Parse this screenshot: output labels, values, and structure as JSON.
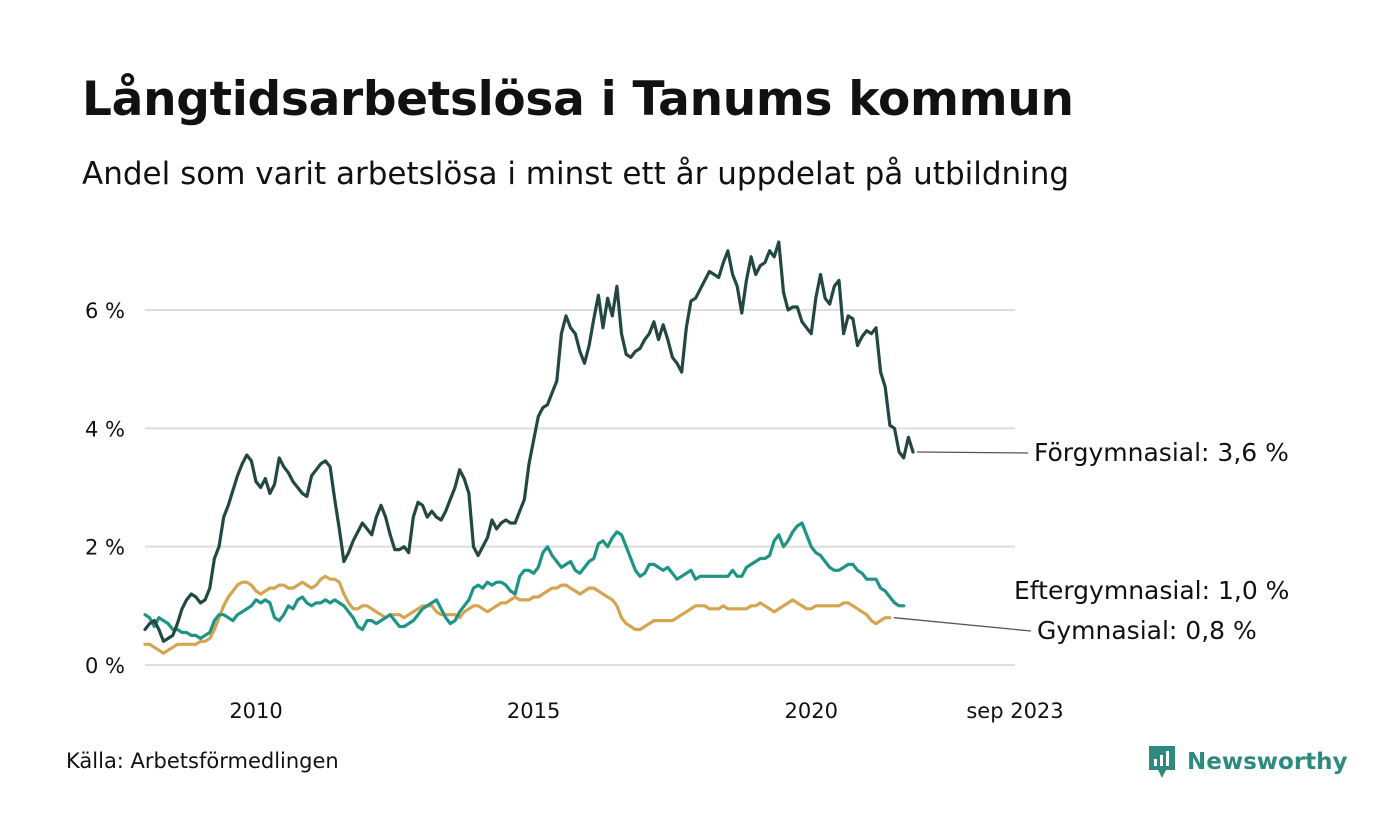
{
  "title": "Långtidsarbetslösa i Tanums kommun",
  "subtitle": "Andel som varit arbetslösa i minst ett år uppdelat på utbildning",
  "source": "Källa: Arbetsförmedlingen",
  "brand": "Newsworthy",
  "colors": {
    "forgymnasial": "#234842",
    "eftergymnasial": "#1d9485",
    "gymnasial": "#d4a451",
    "grid": "#dddddd",
    "brand": "#2e8a7e"
  },
  "chart_data": {
    "type": "line",
    "title": "Långtidsarbetslösa i Tanums kommun",
    "xlabel": "",
    "ylabel": "",
    "x_start": 2008.0,
    "x_step": 0.08333,
    "xlim": [
      2008.0,
      2023.67
    ],
    "ylim": [
      0,
      7.4
    ],
    "y_ticks": [
      {
        "value": 0,
        "label": "0 %"
      },
      {
        "value": 2,
        "label": "2 %"
      },
      {
        "value": 4,
        "label": "4 %"
      },
      {
        "value": 6,
        "label": "6 %"
      }
    ],
    "x_ticks": [
      {
        "value": 2010,
        "label": "2010"
      },
      {
        "value": 2015,
        "label": "2015"
      },
      {
        "value": 2020,
        "label": "2020"
      },
      {
        "value": 2023.67,
        "label": "sep 2023"
      }
    ],
    "grid": true,
    "series": [
      {
        "name": "Förgymnasial",
        "label": "Förgymnasial: 3,6 %",
        "color_key": "forgymnasial",
        "values": [
          0.6,
          0.7,
          0.75,
          0.6,
          0.4,
          0.45,
          0.5,
          0.7,
          0.95,
          1.1,
          1.2,
          1.15,
          1.05,
          1.1,
          1.3,
          1.8,
          2.0,
          2.5,
          2.7,
          2.95,
          3.2,
          3.4,
          3.55,
          3.45,
          3.1,
          3.0,
          3.15,
          2.9,
          3.05,
          3.5,
          3.35,
          3.25,
          3.1,
          3.0,
          2.9,
          2.85,
          3.2,
          3.3,
          3.4,
          3.45,
          3.35,
          2.8,
          2.3,
          1.75,
          1.9,
          2.1,
          2.25,
          2.4,
          2.3,
          2.2,
          2.5,
          2.7,
          2.5,
          2.2,
          1.95,
          1.95,
          2.0,
          1.9,
          2.5,
          2.75,
          2.7,
          2.5,
          2.6,
          2.5,
          2.45,
          2.6,
          2.8,
          3.0,
          3.3,
          3.15,
          2.9,
          2.0,
          1.85,
          2.0,
          2.15,
          2.45,
          2.3,
          2.4,
          2.45,
          2.4,
          2.4,
          2.6,
          2.8,
          3.4,
          3.8,
          4.2,
          4.35,
          4.4,
          4.6,
          4.8,
          5.6,
          5.9,
          5.7,
          5.6,
          5.3,
          5.1,
          5.4,
          5.85,
          6.25,
          5.7,
          6.2,
          5.9,
          6.4,
          5.6,
          5.25,
          5.2,
          5.3,
          5.35,
          5.5,
          5.6,
          5.8,
          5.5,
          5.75,
          5.5,
          5.2,
          5.1,
          4.95,
          5.7,
          6.15,
          6.2,
          6.35,
          6.5,
          6.65,
          6.6,
          6.55,
          6.8,
          7.0,
          6.6,
          6.4,
          5.95,
          6.5,
          6.9,
          6.6,
          6.75,
          6.8,
          7.0,
          6.9,
          7.15,
          6.3,
          6.0,
          6.05,
          6.05,
          5.8,
          5.7,
          5.6,
          6.2,
          6.6,
          6.2,
          6.1,
          6.4,
          6.5,
          5.6,
          5.9,
          5.85,
          5.4,
          5.55,
          5.65,
          5.6,
          5.7,
          4.95,
          4.7,
          4.05,
          4.0,
          3.6,
          3.5,
          3.85,
          3.6
        ]
      },
      {
        "name": "Eftergymnasial",
        "label": "Eftergymnasial: 1,0 %",
        "color_key": "eftergymnasial",
        "values": [
          0.85,
          0.8,
          0.65,
          0.8,
          0.75,
          0.7,
          0.6,
          0.6,
          0.55,
          0.55,
          0.5,
          0.5,
          0.45,
          0.5,
          0.55,
          0.75,
          0.85,
          0.85,
          0.8,
          0.75,
          0.85,
          0.9,
          0.95,
          1.0,
          1.1,
          1.05,
          1.1,
          1.05,
          0.8,
          0.75,
          0.85,
          1.0,
          0.95,
          1.1,
          1.15,
          1.05,
          1.0,
          1.05,
          1.05,
          1.1,
          1.05,
          1.1,
          1.05,
          1.0,
          0.9,
          0.8,
          0.65,
          0.6,
          0.75,
          0.75,
          0.7,
          0.75,
          0.8,
          0.85,
          0.75,
          0.65,
          0.65,
          0.7,
          0.75,
          0.85,
          0.95,
          1.0,
          1.05,
          1.1,
          0.95,
          0.8,
          0.7,
          0.75,
          0.9,
          1.0,
          1.1,
          1.3,
          1.35,
          1.3,
          1.4,
          1.35,
          1.4,
          1.4,
          1.35,
          1.25,
          1.2,
          1.5,
          1.6,
          1.6,
          1.55,
          1.65,
          1.9,
          2.0,
          1.85,
          1.75,
          1.65,
          1.7,
          1.75,
          1.6,
          1.55,
          1.65,
          1.75,
          1.8,
          2.05,
          2.1,
          2.0,
          2.15,
          2.25,
          2.2,
          2.0,
          1.8,
          1.6,
          1.5,
          1.55,
          1.7,
          1.7,
          1.65,
          1.6,
          1.65,
          1.55,
          1.45,
          1.5,
          1.55,
          1.6,
          1.45,
          1.5,
          1.5,
          1.5,
          1.5,
          1.5,
          1.5,
          1.5,
          1.6,
          1.5,
          1.5,
          1.65,
          1.7,
          1.75,
          1.8,
          1.8,
          1.85,
          2.1,
          2.2,
          2.0,
          2.1,
          2.25,
          2.35,
          2.4,
          2.2,
          2.0,
          1.9,
          1.85,
          1.75,
          1.65,
          1.6,
          1.6,
          1.65,
          1.7,
          1.7,
          1.6,
          1.55,
          1.45,
          1.45,
          1.45,
          1.3,
          1.25,
          1.15,
          1.05,
          1.0,
          1.0
        ]
      },
      {
        "name": "Gymnasial",
        "label": "Gymnasial: 0,8 %",
        "color_key": "gymnasial",
        "values": [
          0.35,
          0.35,
          0.3,
          0.25,
          0.2,
          0.25,
          0.3,
          0.35,
          0.35,
          0.35,
          0.35,
          0.35,
          0.4,
          0.4,
          0.45,
          0.6,
          0.8,
          1.0,
          1.15,
          1.25,
          1.35,
          1.4,
          1.4,
          1.35,
          1.25,
          1.2,
          1.25,
          1.3,
          1.3,
          1.35,
          1.35,
          1.3,
          1.3,
          1.35,
          1.4,
          1.35,
          1.3,
          1.35,
          1.45,
          1.5,
          1.45,
          1.45,
          1.4,
          1.2,
          1.05,
          0.95,
          0.95,
          1.0,
          1.0,
          0.95,
          0.9,
          0.85,
          0.8,
          0.85,
          0.85,
          0.85,
          0.8,
          0.85,
          0.9,
          0.95,
          1.0,
          1.0,
          1.0,
          0.9,
          0.85,
          0.85,
          0.85,
          0.85,
          0.8,
          0.9,
          0.95,
          1.0,
          1.0,
          0.95,
          0.9,
          0.95,
          1.0,
          1.05,
          1.05,
          1.1,
          1.15,
          1.1,
          1.1,
          1.1,
          1.15,
          1.15,
          1.2,
          1.25,
          1.3,
          1.3,
          1.35,
          1.35,
          1.3,
          1.25,
          1.2,
          1.25,
          1.3,
          1.3,
          1.25,
          1.2,
          1.15,
          1.1,
          1.0,
          0.8,
          0.7,
          0.65,
          0.6,
          0.6,
          0.65,
          0.7,
          0.75,
          0.75,
          0.75,
          0.75,
          0.75,
          0.8,
          0.85,
          0.9,
          0.95,
          1.0,
          1.0,
          1.0,
          0.95,
          0.95,
          0.95,
          1.0,
          0.95,
          0.95,
          0.95,
          0.95,
          0.95,
          1.0,
          1.0,
          1.05,
          1.0,
          0.95,
          0.9,
          0.95,
          1.0,
          1.05,
          1.1,
          1.05,
          1.0,
          0.95,
          0.95,
          1.0,
          1.0,
          1.0,
          1.0,
          1.0,
          1.0,
          1.05,
          1.05,
          1.0,
          0.95,
          0.9,
          0.85,
          0.75,
          0.7,
          0.75,
          0.8,
          0.8
        ]
      }
    ],
    "end_labels": [
      "Förgymnasial: 3,6 %",
      "Eftergymnasial: 1,0 %",
      "Gymnasial: 0,8 %"
    ]
  }
}
